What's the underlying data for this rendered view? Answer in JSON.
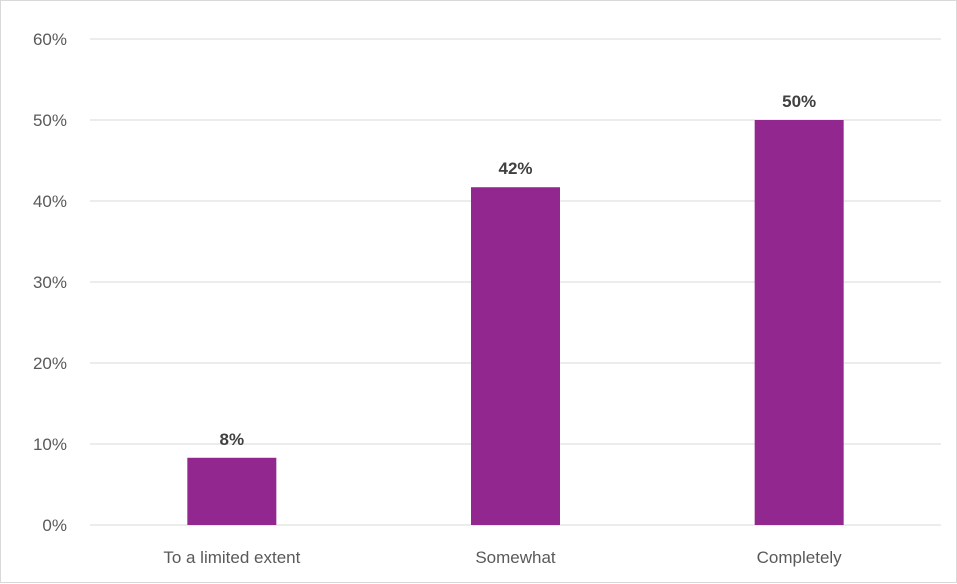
{
  "chart_data": {
    "type": "bar",
    "categories": [
      "To a limited extent",
      "Somewhat",
      "Completely"
    ],
    "values": [
      8.3,
      41.7,
      50
    ],
    "data_labels": [
      "8%",
      "42%",
      "50%"
    ],
    "ylim": [
      0,
      60
    ],
    "yticks": [
      0,
      10,
      20,
      30,
      40,
      50,
      60
    ],
    "ytick_labels": [
      "0%",
      "10%",
      "20%",
      "30%",
      "40%",
      "50%",
      "60%"
    ],
    "grid": true,
    "bar_color": "#92278f",
    "title": "",
    "xlabel": "",
    "ylabel": ""
  }
}
